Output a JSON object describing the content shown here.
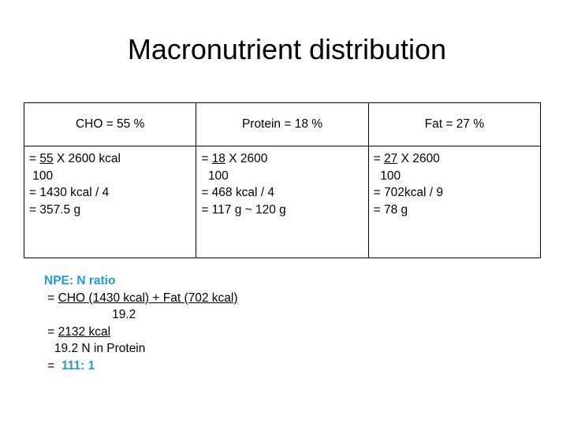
{
  "title": "Macronutrient distribution",
  "table": {
    "header": [
      "CHO = 55 %",
      "Protein = 18 %",
      "Fat = 27 %"
    ],
    "rows": [
      [
        [
          [
            {
              "text": "= "
            },
            {
              "text": "55",
              "underline": true
            },
            {
              "text": " X 2600 kcal"
            }
          ],
          [
            {
              "text": " 100"
            }
          ],
          [
            {
              "text": "= 1430 kcal / 4"
            }
          ],
          [
            {
              "text": "= 357.5 g"
            }
          ]
        ],
        [
          [
            {
              "text": "= "
            },
            {
              "text": "18",
              "underline": true
            },
            {
              "text": " X 2600"
            }
          ],
          [
            {
              "text": "  100"
            }
          ],
          [
            {
              "text": "= 468 kcal / 4"
            }
          ],
          [
            {
              "text": "= 117 g ~ 120 g"
            }
          ]
        ],
        [
          [
            {
              "text": "= "
            },
            {
              "text": "27",
              "underline": true
            },
            {
              "text": " X 2600"
            }
          ],
          [
            {
              "text": "  100"
            }
          ],
          [
            {
              "text": "= 702kcal / 9"
            }
          ],
          [
            {
              "text": "= 78 g"
            }
          ]
        ]
      ]
    ]
  },
  "notes": [
    [
      {
        "text": "NPE: N ratio",
        "color": "#1f9bd6",
        "bold": true
      }
    ],
    [
      {
        "text": " = "
      },
      {
        "text": "CHO (1430 kcal) + Fat (702 kcal)",
        "underline": true
      }
    ],
    [
      {
        "text": "                    19.2"
      }
    ],
    [
      {
        "text": " = "
      },
      {
        "text": "2132 kcal",
        "underline": true
      }
    ],
    [
      {
        "text": "   19.2 N in Protein"
      }
    ],
    [
      {
        "text": " =  "
      },
      {
        "text": "111: 1",
        "color": "#1f9bd6",
        "bold": true
      }
    ]
  ]
}
